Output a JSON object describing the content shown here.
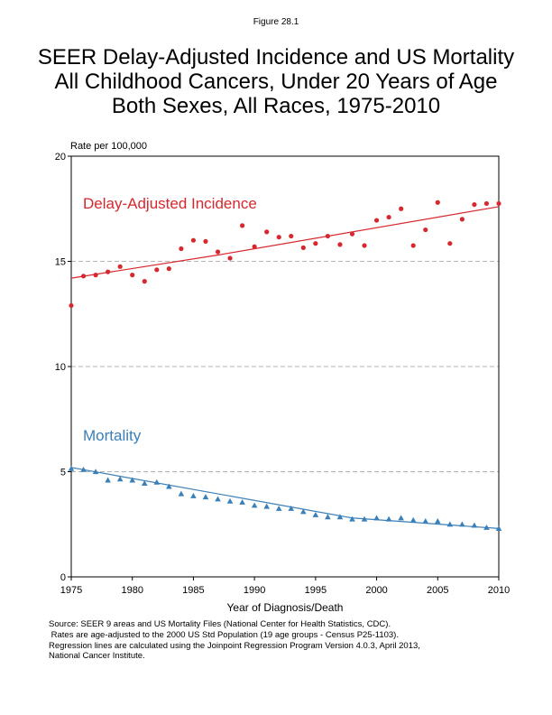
{
  "figure_label": "Figure 28.1",
  "title_lines": [
    "SEER Delay-Adjusted Incidence and US Mortality",
    "All Childhood Cancers, Under 20 Years of Age",
    "Both Sexes, All Races, 1975-2010"
  ],
  "source_lines": [
    "Source: SEER 9 areas and US Mortality Files (National Center for Health Statistics, CDC).",
    " Rates are age-adjusted to the 2000 US Std Population (19 age groups - Census P25-1103).",
    "Regression lines are calculated using the Joinpoint Regression Program Version 4.0.3, April 2013,",
    "National Cancer Institute."
  ],
  "chart_data": {
    "type": "scatter",
    "ylabel": "Rate per 100,000",
    "xlabel": "Year of Diagnosis/Death",
    "xlim": [
      1975,
      2010
    ],
    "ylim": [
      0,
      20
    ],
    "x_ticks": [
      1975,
      1980,
      1985,
      1990,
      1995,
      2000,
      2005,
      2010
    ],
    "y_ticks": [
      0,
      5,
      10,
      15,
      20
    ],
    "dashed_gridlines_y": [
      5,
      10,
      15
    ],
    "x": [
      1975,
      1976,
      1977,
      1978,
      1979,
      1980,
      1981,
      1982,
      1983,
      1984,
      1985,
      1986,
      1987,
      1988,
      1989,
      1990,
      1991,
      1992,
      1993,
      1994,
      1995,
      1996,
      1997,
      1998,
      1999,
      2000,
      2001,
      2002,
      2003,
      2004,
      2005,
      2006,
      2007,
      2008,
      2009,
      2010
    ],
    "series": [
      {
        "name": "Delay-Adjusted Incidence",
        "color": "#d7282f",
        "marker": "circle",
        "values": [
          12.9,
          14.3,
          14.35,
          14.5,
          14.75,
          14.35,
          14.05,
          14.6,
          14.65,
          15.6,
          16.0,
          15.95,
          15.45,
          15.15,
          16.7,
          15.7,
          16.4,
          16.15,
          16.2,
          15.65,
          15.85,
          16.2,
          15.8,
          16.3,
          15.75,
          16.95,
          17.1,
          17.5,
          15.75,
          16.5,
          17.8,
          15.85,
          17.0,
          17.7,
          17.75,
          17.75
        ],
        "trend": [
          [
            1975,
            14.2
          ],
          [
            1987,
            15.3
          ],
          [
            2010,
            17.6
          ]
        ]
      },
      {
        "name": "Mortality",
        "color": "#3a7fb8",
        "marker": "triangle",
        "values": [
          5.15,
          5.1,
          5.0,
          4.6,
          4.65,
          4.6,
          4.45,
          4.5,
          4.3,
          3.95,
          3.85,
          3.8,
          3.7,
          3.6,
          3.55,
          3.4,
          3.35,
          3.25,
          3.25,
          3.1,
          2.95,
          2.85,
          2.85,
          2.75,
          2.75,
          2.8,
          2.75,
          2.8,
          2.7,
          2.65,
          2.65,
          2.5,
          2.5,
          2.45,
          2.35,
          2.3
        ],
        "trend": [
          [
            1975,
            5.2
          ],
          [
            1998,
            2.8
          ],
          [
            2010,
            2.3
          ]
        ]
      }
    ]
  }
}
